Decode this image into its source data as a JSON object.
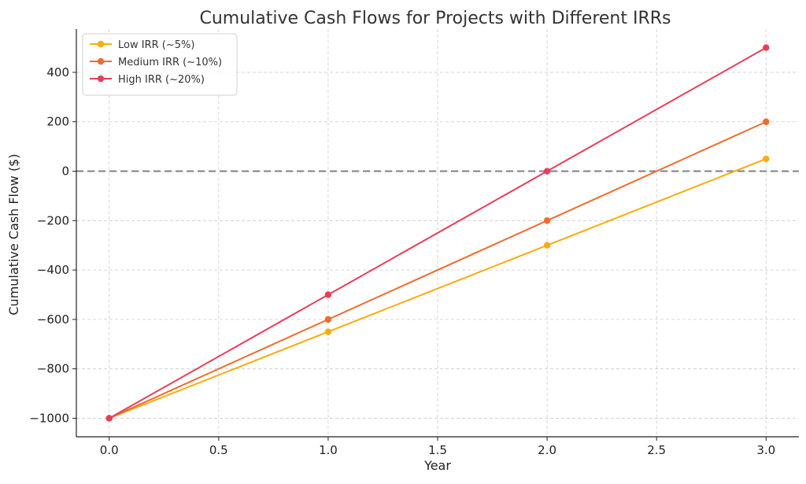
{
  "chart_data": {
    "type": "line",
    "title": "Cumulative Cash Flows for Projects with Different IRRs",
    "xlabel": "Year",
    "ylabel": "Cumulative Cash Flow ($)",
    "x": [
      0.0,
      1.0,
      2.0,
      3.0
    ],
    "xlim": [
      -0.15,
      3.15
    ],
    "ylim": [
      -1075,
      575
    ],
    "xticks": [
      0.0,
      0.5,
      1.0,
      1.5,
      2.0,
      2.5,
      3.0
    ],
    "xtick_labels": [
      "0.0",
      "0.5",
      "1.0",
      "1.5",
      "2.0",
      "2.5",
      "3.0"
    ],
    "yticks": [
      -1000,
      -800,
      -600,
      -400,
      -200,
      0,
      200,
      400
    ],
    "ytick_labels": [
      "−1000",
      "−800",
      "−600",
      "−400",
      "−200",
      "0",
      "200",
      "400"
    ],
    "grid": true,
    "legend_position": "top-left",
    "zero_line": true,
    "series": [
      {
        "name": "Low IRR (~5%)",
        "color": "#fcac0c",
        "values": [
          -1000,
          -650,
          -300,
          50
        ]
      },
      {
        "name": "Medium IRR (~10%)",
        "color": "#ef6c2d",
        "values": [
          -1000,
          -600,
          -200,
          200
        ]
      },
      {
        "name": "High IRR (~20%)",
        "color": "#e83e5c",
        "values": [
          -1000,
          -500,
          0,
          500
        ]
      }
    ]
  }
}
